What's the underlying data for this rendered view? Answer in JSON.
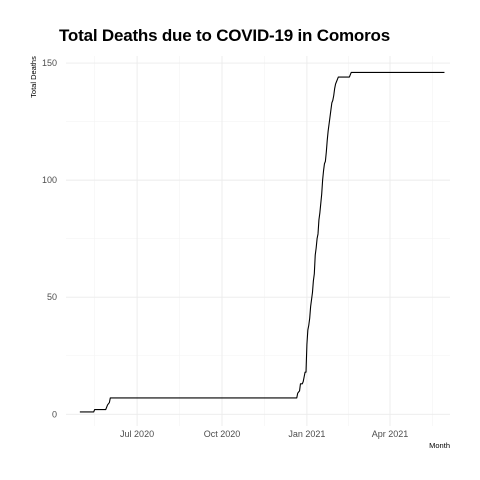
{
  "chart_data": {
    "type": "line",
    "title": "Total Deaths due to COVID-19 in Comoros",
    "xlabel": "Month",
    "ylabel": "Total Deaths",
    "x_type": "date",
    "xlim": [
      "2020-04-15",
      "2021-06-05"
    ],
    "ylim": [
      -5,
      153
    ],
    "x_ticks": [
      {
        "date": "2020-07-01",
        "label": "Jul 2020"
      },
      {
        "date": "2020-10-01",
        "label": "Oct 2020"
      },
      {
        "date": "2021-01-01",
        "label": "Jan 2021"
      },
      {
        "date": "2021-04-01",
        "label": "Apr 2021"
      }
    ],
    "y_ticks": [
      0,
      50,
      100,
      150
    ],
    "grid": true,
    "legend": "none",
    "line_color": "#000000",
    "series": [
      {
        "x": [
          "2020-04-30",
          "2020-05-15",
          "2020-05-16",
          "2020-05-28",
          "2020-05-29",
          "2020-05-30",
          "2020-06-01",
          "2020-06-02",
          "2020-12-21",
          "2020-12-22",
          "2020-12-24",
          "2020-12-25",
          "2020-12-27",
          "2020-12-28",
          "2020-12-29",
          "2020-12-30",
          "2020-12-31",
          "2021-01-01",
          "2021-01-02",
          "2021-01-03",
          "2021-01-04",
          "2021-01-05",
          "2021-01-06",
          "2021-01-07",
          "2021-01-08",
          "2021-01-09",
          "2021-01-10",
          "2021-01-11",
          "2021-01-12",
          "2021-01-13",
          "2021-01-14",
          "2021-01-15",
          "2021-01-16",
          "2021-01-17",
          "2021-01-18",
          "2021-01-19",
          "2021-01-20",
          "2021-01-21",
          "2021-01-22",
          "2021-01-23",
          "2021-01-24",
          "2021-01-25",
          "2021-01-26",
          "2021-01-27",
          "2021-01-28",
          "2021-01-29",
          "2021-01-30",
          "2021-01-31",
          "2021-02-01",
          "2021-02-02",
          "2021-02-03",
          "2021-02-04",
          "2021-02-05",
          "2021-02-06",
          "2021-02-07",
          "2021-02-08",
          "2021-02-09",
          "2021-02-10",
          "2021-02-11",
          "2021-02-12",
          "2021-02-13",
          "2021-02-14",
          "2021-02-15",
          "2021-02-16",
          "2021-02-17",
          "2021-02-18",
          "2021-02-20",
          "2021-02-22",
          "2021-02-25",
          "2021-02-27",
          "2021-05-30"
        ],
        "y": [
          1,
          1,
          2,
          2,
          3,
          4,
          5,
          7,
          7,
          9,
          10,
          13,
          13,
          14,
          16,
          18,
          18,
          30,
          36,
          38,
          41,
          46,
          49,
          52,
          57,
          60,
          68,
          71,
          75,
          77,
          83,
          86,
          90,
          94,
          100,
          104,
          107,
          108,
          112,
          117,
          121,
          124,
          127,
          130,
          133,
          134,
          136,
          139,
          141,
          142,
          143,
          144,
          144,
          144,
          144,
          144,
          144,
          144,
          144,
          144,
          144,
          144,
          144,
          144,
          145,
          146,
          146,
          146,
          146,
          146,
          146
        ]
      }
    ]
  }
}
